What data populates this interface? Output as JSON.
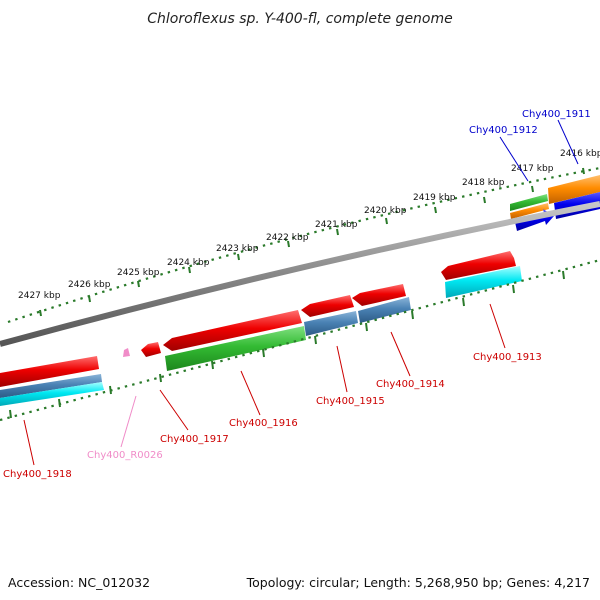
{
  "title": "Chloroflexus sp. Y-400-fl, complete genome",
  "ticks": [
    "2427 kbp",
    "2426 kbp",
    "2425 kbp",
    "2424 kbp",
    "2423 kbp",
    "2422 kbp",
    "2421 kbp",
    "2420 kbp",
    "2419 kbp",
    "2418 kbp",
    "2417 kbp",
    "2416 kbp"
  ],
  "genes": [
    {
      "label": "Chy400_1911",
      "color": "#0000cc"
    },
    {
      "label": "Chy400_1912",
      "color": "#0000cc"
    },
    {
      "label": "Chy400_1913",
      "color": "#cc0000"
    },
    {
      "label": "Chy400_1914",
      "color": "#cc0000"
    },
    {
      "label": "Chy400_1915",
      "color": "#cc0000"
    },
    {
      "label": "Chy400_1916",
      "color": "#cc0000"
    },
    {
      "label": "Chy400_1917",
      "color": "#cc0000"
    },
    {
      "label": "Chy400_R0026",
      "color": "#f08cc8"
    },
    {
      "label": "Chy400_1918",
      "color": "#cc0000"
    }
  ],
  "footer": {
    "accession": "Accession: NC_012032",
    "summary": "Topology: circular; Length: 5,268,950 bp; Genes: 4,217"
  }
}
